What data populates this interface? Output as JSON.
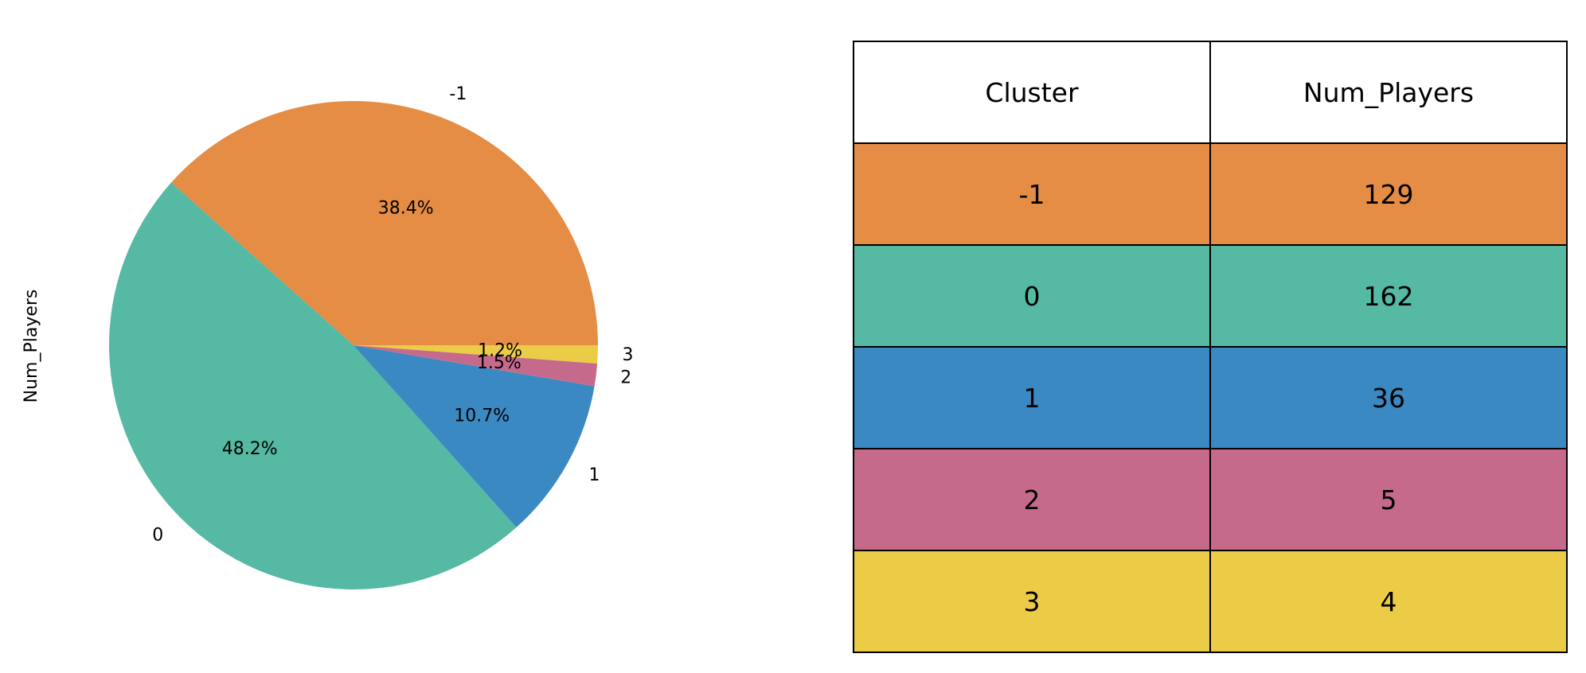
{
  "chart_data": [
    {
      "type": "pie",
      "ylabel": "Num_Players",
      "slices": [
        {
          "label": "-1",
          "value": 129,
          "pct_label": "38.4%",
          "color": "#e58c45"
        },
        {
          "label": "0",
          "value": 162,
          "pct_label": "48.2%",
          "color": "#55b9a3"
        },
        {
          "label": "1",
          "value": 36,
          "pct_label": "10.7%",
          "color": "#3a89c2"
        },
        {
          "label": "2",
          "value": 5,
          "pct_label": "1.5%",
          "color": "#c66a8c"
        },
        {
          "label": "3",
          "value": 4,
          "pct_label": "1.2%",
          "color": "#eccc46"
        }
      ],
      "start_angle_deg": 0,
      "direction": "counterclockwise"
    },
    {
      "type": "table",
      "columns": [
        "Cluster",
        "Num_Players"
      ],
      "rows": [
        {
          "cells": [
            "-1",
            "129"
          ],
          "color": "#e58c45"
        },
        {
          "cells": [
            "0",
            "162"
          ],
          "color": "#55b9a3"
        },
        {
          "cells": [
            "1",
            "36"
          ],
          "color": "#3a89c2"
        },
        {
          "cells": [
            "2",
            "5"
          ],
          "color": "#c66a8c"
        },
        {
          "cells": [
            "3",
            "4"
          ],
          "color": "#eccc46"
        }
      ]
    }
  ]
}
